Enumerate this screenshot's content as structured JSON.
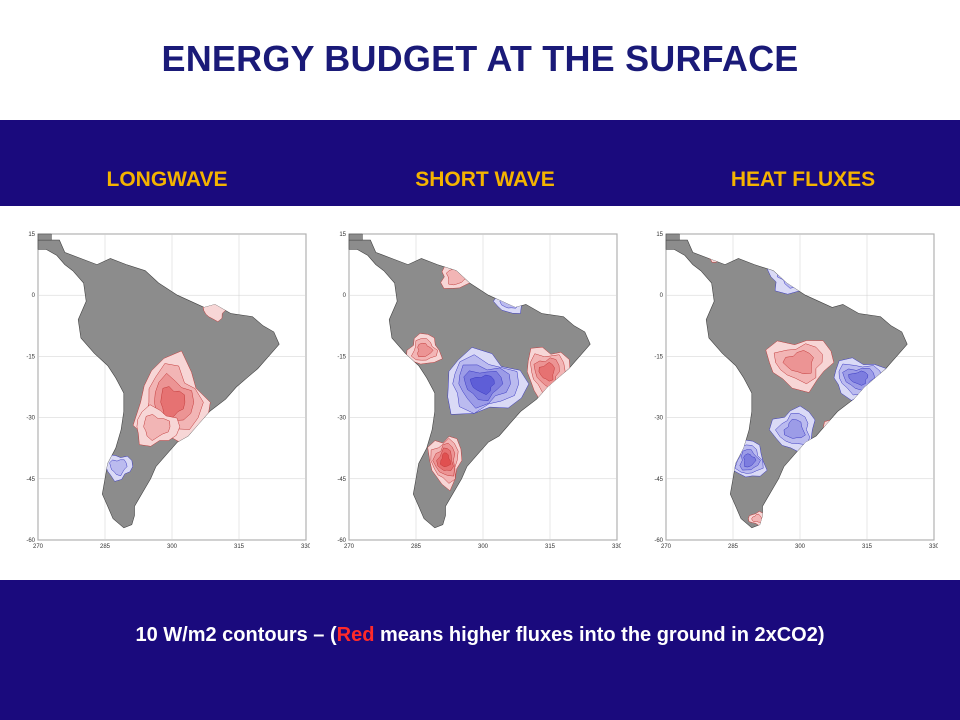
{
  "title": "ENERGY BUDGET AT THE SURFACE",
  "columns": [
    {
      "label": "LONGWAVE"
    },
    {
      "label": "SHORT WAVE"
    },
    {
      "label": "HEAT FLUXES"
    }
  ],
  "axes": {
    "y_ticks": [
      "15",
      "0",
      "-15",
      "-30",
      "-45",
      "-60"
    ],
    "x_ticks": [
      "270",
      "285",
      "300",
      "315",
      "330"
    ]
  },
  "caption": {
    "prefix": "10 W/m2  contours – (",
    "red_word": "Red",
    "suffix": " means higher fluxes into the ground in 2xCO2)"
  },
  "colors": {
    "band": "#1a0a7d",
    "title": "#1a1a78",
    "column_label": "#f4b300",
    "land": "#8c8c8c",
    "positive": "#ff8080",
    "negative": "#8080ff"
  }
}
